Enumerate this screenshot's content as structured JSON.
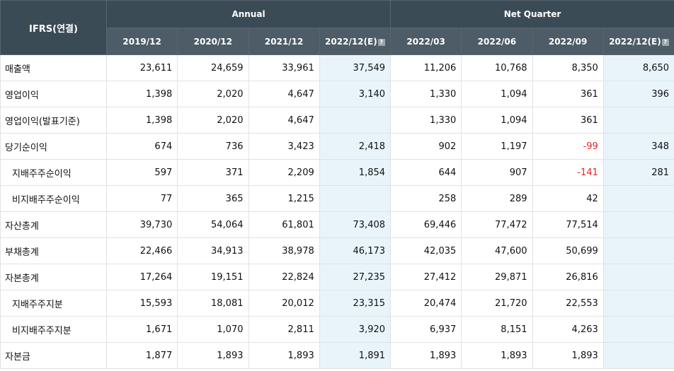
{
  "header": {
    "corner": "IFRS(연결)",
    "annual_label": "Annual",
    "quarter_label": "Net Quarter",
    "periods": [
      {
        "label": "2019/12",
        "estimate": false,
        "annual": true
      },
      {
        "label": "2020/12",
        "estimate": false,
        "annual": true
      },
      {
        "label": "2021/12",
        "estimate": false,
        "annual": true
      },
      {
        "label": "2022/12(E)",
        "estimate": true,
        "annual": true
      },
      {
        "label": "2022/03",
        "estimate": false,
        "annual": false
      },
      {
        "label": "2022/06",
        "estimate": false,
        "annual": false
      },
      {
        "label": "2022/09",
        "estimate": false,
        "annual": false
      },
      {
        "label": "2022/12(E)",
        "estimate": true,
        "annual": false
      }
    ],
    "estimate_icon": "info-icon"
  },
  "colors": {
    "header_bg": "#3b4b55",
    "estimate_bg": "#e8f4fa",
    "negative": "#e3262b"
  },
  "rows": [
    {
      "label": "매출액",
      "sub": false,
      "values": [
        "23,611",
        "24,659",
        "33,961",
        "37,549",
        "11,206",
        "10,768",
        "8,350",
        "8,650"
      ]
    },
    {
      "label": "영업이익",
      "sub": false,
      "values": [
        "1,398",
        "2,020",
        "4,647",
        "3,140",
        "1,330",
        "1,094",
        "361",
        "396"
      ]
    },
    {
      "label": "영업이익(발표기준)",
      "sub": false,
      "values": [
        "1,398",
        "2,020",
        "4,647",
        "",
        "1,330",
        "1,094",
        "361",
        ""
      ]
    },
    {
      "label": "당기순이익",
      "sub": false,
      "values": [
        "674",
        "736",
        "3,423",
        "2,418",
        "902",
        "1,197",
        "-99",
        "348"
      ]
    },
    {
      "label": "지배주주순이익",
      "sub": true,
      "values": [
        "597",
        "371",
        "2,209",
        "1,854",
        "644",
        "907",
        "-141",
        "281"
      ]
    },
    {
      "label": "비지배주주순이익",
      "sub": true,
      "values": [
        "77",
        "365",
        "1,215",
        "",
        "258",
        "289",
        "42",
        ""
      ]
    },
    {
      "label": "자산총계",
      "sub": false,
      "values": [
        "39,730",
        "54,064",
        "61,801",
        "73,408",
        "69,446",
        "77,472",
        "77,514",
        ""
      ]
    },
    {
      "label": "부채총계",
      "sub": false,
      "values": [
        "22,466",
        "34,913",
        "38,978",
        "46,173",
        "42,035",
        "47,600",
        "50,699",
        ""
      ]
    },
    {
      "label": "자본총계",
      "sub": false,
      "values": [
        "17,264",
        "19,151",
        "22,824",
        "27,235",
        "27,412",
        "29,871",
        "26,816",
        ""
      ]
    },
    {
      "label": "지배주주지분",
      "sub": true,
      "values": [
        "15,593",
        "18,081",
        "20,012",
        "23,315",
        "20,474",
        "21,720",
        "22,553",
        ""
      ]
    },
    {
      "label": "비지배주주지분",
      "sub": true,
      "values": [
        "1,671",
        "1,070",
        "2,811",
        "3,920",
        "6,937",
        "8,151",
        "4,263",
        ""
      ]
    },
    {
      "label": "자본금",
      "sub": false,
      "values": [
        "1,877",
        "1,893",
        "1,893",
        "1,891",
        "1,893",
        "1,893",
        "1,893",
        ""
      ]
    }
  ]
}
